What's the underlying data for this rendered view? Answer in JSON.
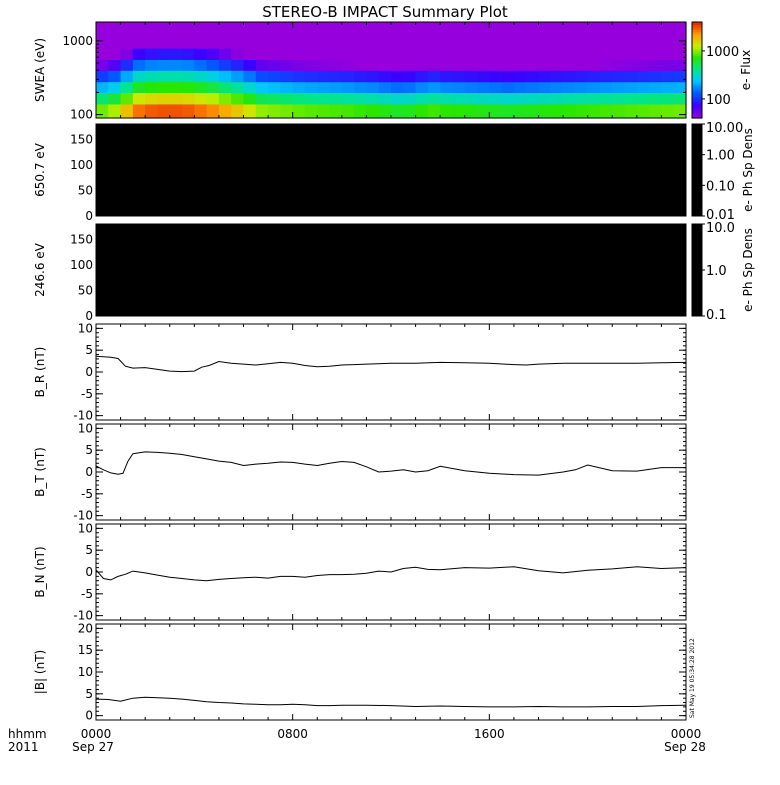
{
  "title": "STEREO-B IMPACT Summary Plot",
  "stamp": "Sat May 19 05:34:28 2012",
  "bottom_labels": {
    "row1": "hhmm",
    "row2": "2011",
    "start_date": "Sep 27",
    "end_date": "Sep 28"
  },
  "colors": {
    "axes": "#000000",
    "trace": "#000000",
    "background": "#ffffff",
    "black_panel": "#000000"
  },
  "chart_data": [
    {
      "type": "heatmap",
      "panel": "swea",
      "ylabel": "SWEA (eV)",
      "yscale": "log",
      "ylim": [
        90,
        1800
      ],
      "yticks": [
        {
          "value": 1000,
          "label": "1000"
        },
        {
          "value": 100,
          "label": "100"
        }
      ],
      "colorbar": {
        "label": "e- Flux",
        "scale": "log",
        "range": [
          40,
          4000
        ],
        "ticks": [
          {
            "value": 1000,
            "label": "1000"
          },
          {
            "value": 100,
            "label": "100"
          }
        ],
        "colormap": "rainbow"
      },
      "x_hours": [
        0,
        0.5,
        1,
        1.5,
        2,
        2.5,
        3,
        3.5,
        4,
        4.5,
        5,
        5.5,
        6,
        6.5,
        7,
        7.5,
        8,
        8.5,
        9,
        9.5,
        10,
        10.5,
        11,
        11.5,
        12,
        12.5,
        13,
        13.5,
        14,
        14.5,
        15,
        15.5,
        16,
        16.5,
        17,
        17.5,
        18,
        18.5,
        19,
        19.5,
        20,
        20.5,
        21,
        21.5,
        22,
        22.5,
        23,
        23.5
      ],
      "energies_eV": [
        100,
        140,
        200,
        280,
        400,
        560,
        800,
        1100,
        1600
      ],
      "flux_low_energy": [
        900,
        1100,
        1700,
        2600,
        2900,
        3000,
        3000,
        2900,
        2600,
        2300,
        1900,
        1600,
        1300,
        1000,
        950,
        900,
        850,
        820,
        800,
        780,
        760,
        720,
        700,
        650,
        600,
        620,
        700,
        750,
        700,
        680,
        660,
        640,
        620,
        600,
        620,
        640,
        660,
        680,
        700,
        720,
        740,
        760,
        780,
        800,
        820,
        840,
        860,
        880
      ]
    },
    {
      "type": "heatmap",
      "panel": "pad650",
      "ylabel": "650.7 eV",
      "ylim": [
        0,
        180
      ],
      "yticks": [
        {
          "value": 150,
          "label": "150"
        },
        {
          "value": 100,
          "label": "100"
        },
        {
          "value": 50,
          "label": "50"
        },
        {
          "value": 0,
          "label": "0"
        }
      ],
      "colorbar": {
        "label": "e- Ph Sp Dens",
        "scale": "log",
        "range": [
          0.01,
          10
        ],
        "ticks": [
          {
            "value": 10,
            "label": "10.00"
          },
          {
            "value": 1,
            "label": "1.00"
          },
          {
            "value": 0.1,
            "label": "0.10"
          },
          {
            "value": 0.01,
            "label": "0.01"
          }
        ]
      }
    },
    {
      "type": "heatmap",
      "panel": "pad246",
      "ylabel": "246.6 eV",
      "ylim": [
        0,
        180
      ],
      "yticks": [
        {
          "value": 150,
          "label": "150"
        },
        {
          "value": 100,
          "label": "100"
        },
        {
          "value": 50,
          "label": "50"
        },
        {
          "value": 0,
          "label": "0"
        }
      ],
      "colorbar": {
        "label": "e- Ph Sp Dens",
        "scale": "log",
        "range": [
          0.1,
          10
        ],
        "ticks": [
          {
            "value": 10,
            "label": "10.0"
          },
          {
            "value": 1,
            "label": "1.0"
          },
          {
            "value": 0.1,
            "label": "0.1"
          }
        ]
      }
    },
    {
      "type": "line",
      "panel": "br",
      "ylabel": "B_R (nT)",
      "ylim": [
        -11,
        11
      ],
      "yticks": [
        {
          "value": 10,
          "label": "10"
        },
        {
          "value": 5,
          "label": "5"
        },
        {
          "value": 0,
          "label": "0"
        },
        {
          "value": -5,
          "label": "-5"
        },
        {
          "value": -10,
          "label": "-10"
        }
      ],
      "x_hours": [
        0,
        0.3,
        0.6,
        0.9,
        1.2,
        1.5,
        2,
        2.5,
        3,
        3.5,
        4,
        4.3,
        4.6,
        5,
        5.5,
        6,
        6.5,
        7,
        7.5,
        8,
        8.5,
        9,
        9.5,
        10,
        10.5,
        11,
        12,
        13,
        14,
        15,
        16,
        17,
        17.5,
        18,
        19,
        20,
        21,
        22,
        23,
        24
      ],
      "values": [
        3.6,
        3.5,
        3.4,
        3.1,
        1.3,
        0.9,
        1.0,
        0.6,
        0.2,
        0.1,
        0.2,
        1.1,
        1.5,
        2.4,
        2.0,
        1.8,
        1.6,
        1.9,
        2.2,
        2.0,
        1.5,
        1.2,
        1.3,
        1.6,
        1.7,
        1.8,
        2.0,
        2.0,
        2.2,
        2.1,
        2.0,
        1.7,
        1.6,
        1.8,
        2.0,
        2.0,
        2.0,
        2.0,
        2.1,
        2.2
      ]
    },
    {
      "type": "line",
      "panel": "bt",
      "ylabel": "B_T (nT)",
      "ylim": [
        -11,
        11
      ],
      "yticks": [
        {
          "value": 10,
          "label": "10"
        },
        {
          "value": 5,
          "label": "5"
        },
        {
          "value": 0,
          "label": "0"
        },
        {
          "value": -5,
          "label": "-5"
        },
        {
          "value": -10,
          "label": "-10"
        }
      ],
      "x_hours": [
        0,
        0.3,
        0.6,
        0.9,
        1.1,
        1.3,
        1.5,
        2,
        2.5,
        3,
        3.5,
        4,
        4.5,
        5,
        5.5,
        6,
        6.5,
        7,
        7.5,
        8,
        8.5,
        9,
        9.5,
        10,
        10.5,
        11,
        11.5,
        12,
        12.5,
        13,
        13.5,
        14,
        15,
        16,
        17,
        18,
        19,
        19.5,
        20,
        21,
        22,
        23,
        24
      ],
      "values": [
        1.4,
        0.5,
        -0.2,
        -0.5,
        -0.3,
        2.5,
        4.2,
        4.6,
        4.5,
        4.3,
        4.0,
        3.5,
        3.0,
        2.5,
        2.2,
        1.5,
        1.8,
        2.0,
        2.3,
        2.2,
        1.8,
        1.5,
        2.0,
        2.4,
        2.2,
        1.2,
        0.0,
        0.2,
        0.5,
        0.0,
        0.3,
        1.3,
        0.3,
        -0.3,
        -0.6,
        -0.7,
        0.0,
        0.5,
        1.6,
        0.3,
        0.2,
        1.0,
        1.0
      ]
    },
    {
      "type": "line",
      "panel": "bn",
      "ylabel": "B_N (nT)",
      "ylim": [
        -11,
        11
      ],
      "yticks": [
        {
          "value": 10,
          "label": "10"
        },
        {
          "value": 5,
          "label": "5"
        },
        {
          "value": 0,
          "label": "0"
        },
        {
          "value": -5,
          "label": "-5"
        },
        {
          "value": -10,
          "label": "-10"
        }
      ],
      "x_hours": [
        0,
        0.3,
        0.6,
        0.9,
        1.2,
        1.5,
        2,
        2.5,
        3,
        3.5,
        4,
        4.5,
        5,
        5.5,
        6,
        6.5,
        7,
        7.5,
        8,
        8.5,
        9,
        9.5,
        10,
        10.5,
        11,
        11.5,
        12,
        12.5,
        13,
        13.5,
        14,
        15,
        16,
        17,
        18,
        19,
        20,
        21,
        22,
        23,
        24
      ],
      "values": [
        0.5,
        -1.5,
        -1.8,
        -1.0,
        -0.5,
        0.2,
        -0.2,
        -0.7,
        -1.2,
        -1.5,
        -1.8,
        -2.0,
        -1.7,
        -1.5,
        -1.3,
        -1.2,
        -1.4,
        -1.0,
        -1.0,
        -1.2,
        -0.8,
        -0.6,
        -0.6,
        -0.5,
        -0.3,
        0.2,
        0.0,
        0.8,
        1.1,
        0.6,
        0.5,
        1.0,
        0.9,
        1.2,
        0.3,
        -0.2,
        0.4,
        0.7,
        1.2,
        0.8,
        1.0
      ]
    },
    {
      "type": "line",
      "panel": "bmag",
      "ylabel": "|B| (nT)",
      "ylim": [
        -1,
        21
      ],
      "yticks": [
        {
          "value": 20,
          "label": "20"
        },
        {
          "value": 15,
          "label": "15"
        },
        {
          "value": 10,
          "label": "10"
        },
        {
          "value": 5,
          "label": "5"
        },
        {
          "value": 0,
          "label": "0"
        }
      ],
      "x_hours": [
        0,
        0.5,
        1,
        1.5,
        2,
        2.5,
        3,
        3.5,
        4,
        4.5,
        5,
        5.5,
        6,
        6.5,
        7,
        7.5,
        8,
        8.5,
        9,
        9.5,
        10,
        11,
        12,
        13,
        14,
        15,
        16,
        17,
        18,
        19,
        20,
        21,
        22,
        23,
        24
      ],
      "values": [
        3.8,
        3.7,
        3.3,
        4.0,
        4.2,
        4.1,
        4.0,
        3.8,
        3.5,
        3.2,
        3.0,
        2.9,
        2.7,
        2.6,
        2.5,
        2.5,
        2.6,
        2.5,
        2.3,
        2.3,
        2.4,
        2.4,
        2.3,
        2.1,
        2.2,
        2.1,
        2.0,
        2.0,
        2.1,
        2.0,
        2.0,
        2.1,
        2.1,
        2.3,
        2.4
      ]
    }
  ],
  "xaxis": {
    "range_hours": [
      0,
      24
    ],
    "ticks": [
      {
        "hour": 0,
        "label": "0000"
      },
      {
        "hour": 8,
        "label": "0800"
      },
      {
        "hour": 16,
        "label": "1600"
      },
      {
        "hour": 24,
        "label": "0000"
      }
    ]
  }
}
